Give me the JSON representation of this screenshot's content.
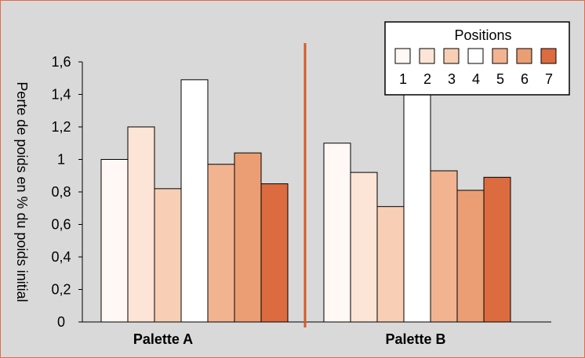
{
  "chart_data": {
    "type": "bar",
    "ylabel": "Perte de poids en % du poids initial",
    "ylim": [
      0,
      1.6
    ],
    "yticks": [
      "0",
      "0,2",
      "0,4",
      "0,6",
      "0,8",
      "1",
      "1,2",
      "1,4",
      "1,6"
    ],
    "grid": false,
    "legend": {
      "title": "Positions",
      "placement": "top-right",
      "labels": [
        "1",
        "2",
        "3",
        "4",
        "5",
        "6",
        "7"
      ]
    },
    "categories": [
      "Palette A",
      "Palette B"
    ],
    "series": [
      {
        "name": "1",
        "values": [
          1.0,
          1.1
        ],
        "color": "#fff8f4"
      },
      {
        "name": "2",
        "values": [
          1.2,
          0.92
        ],
        "color": "#fce4d6"
      },
      {
        "name": "3",
        "values": [
          0.82,
          0.71
        ],
        "color": "#f8cfb4"
      },
      {
        "name": "4",
        "values": [
          1.49,
          1.4
        ],
        "color": "#ffffff"
      },
      {
        "name": "5",
        "values": [
          0.97,
          0.93
        ],
        "color": "#f2b391"
      },
      {
        "name": "6",
        "values": [
          1.04,
          0.81
        ],
        "color": "#eb9e74"
      },
      {
        "name": "7",
        "values": [
          0.85,
          0.89
        ],
        "color": "#dd6b40"
      }
    ],
    "colors": {
      "plot_background": "#d9d9d9",
      "frame_border": "#e26b4d",
      "separator_line": "#d45a28",
      "bar_outline": "#000000"
    }
  }
}
